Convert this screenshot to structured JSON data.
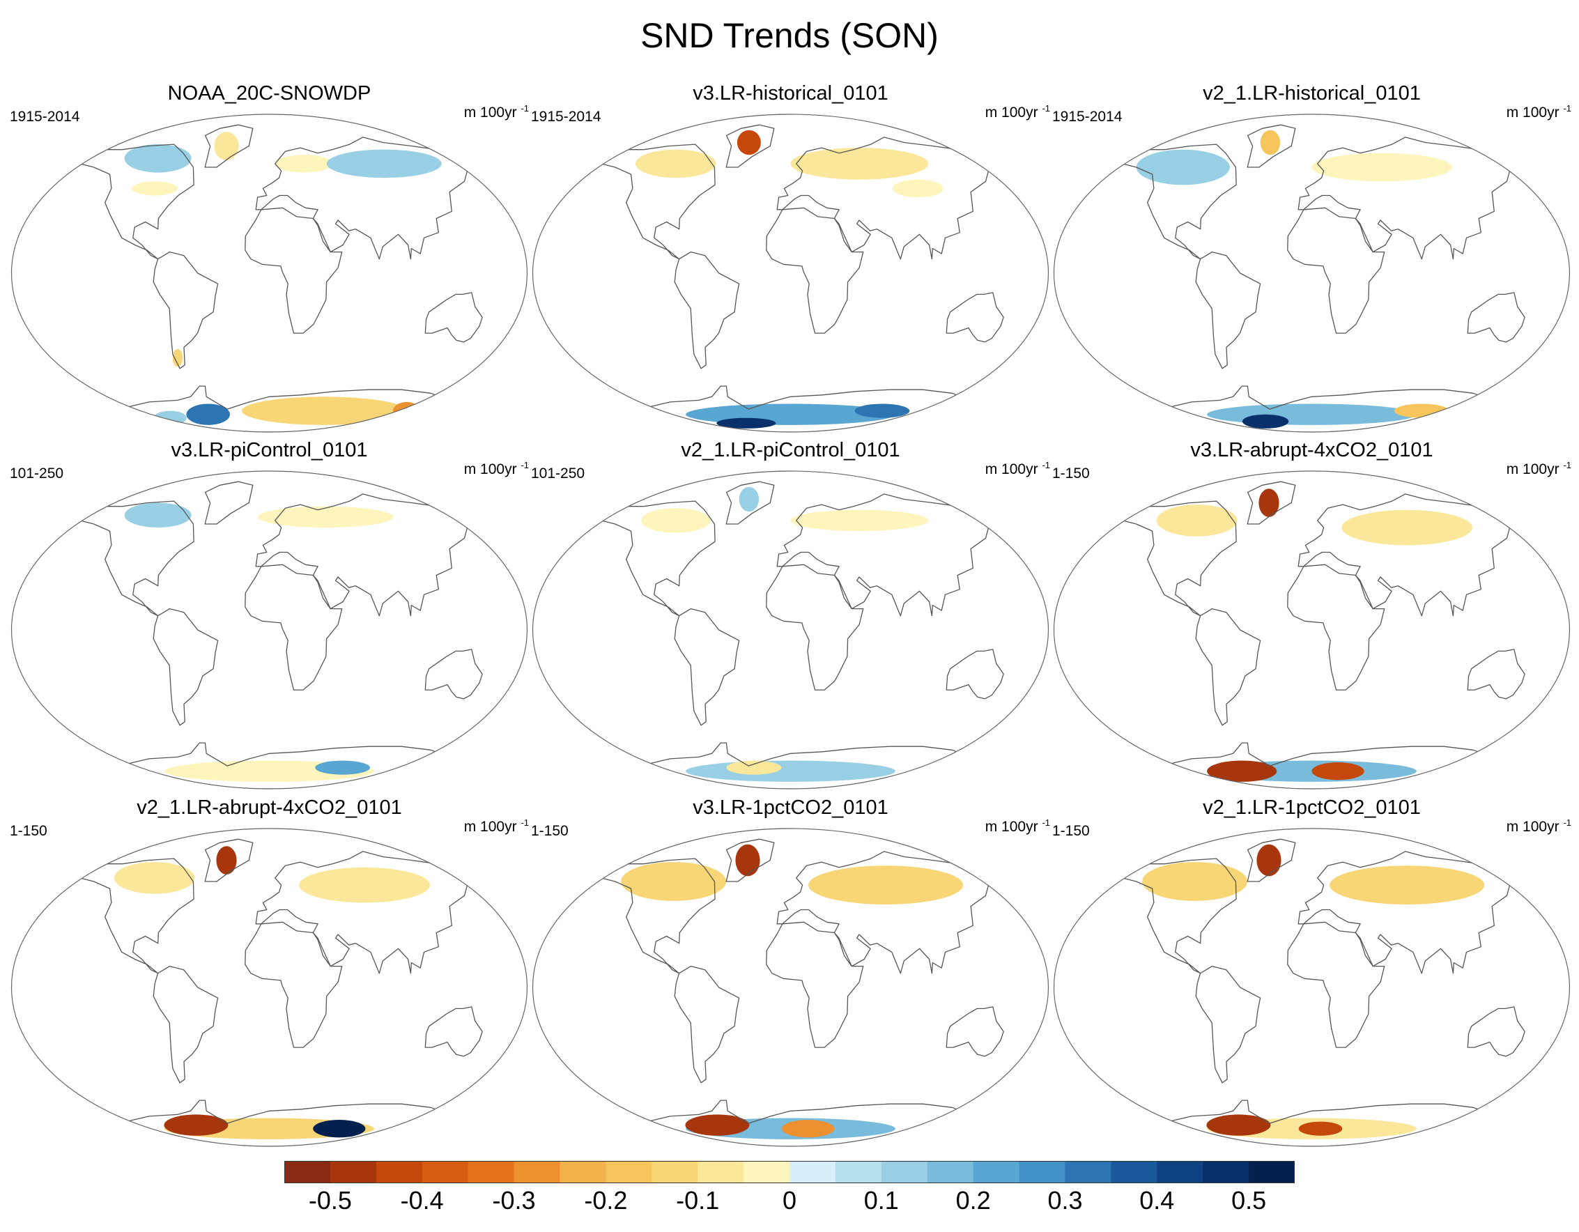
{
  "chart_data": {
    "type": "heatmap",
    "title": "SND Trends (SON)",
    "projection": "Robinson-like global map, 3x3 panel grid",
    "units_text": "m 100yr",
    "units_superscript": "-1",
    "panels": [
      {
        "title": "NOAA_20C-SNOWDP",
        "period": "1915-2014",
        "blobs": [
          {
            "lon": -100,
            "lat": 65,
            "rx": 30,
            "ry": 8,
            "v": 0.1
          },
          {
            "lon": -42,
            "lat": 72,
            "rx": 12,
            "ry": 8,
            "v": -0.1
          },
          {
            "lon": 30,
            "lat": 62,
            "rx": 25,
            "ry": 5,
            "v": -0.05
          },
          {
            "lon": 100,
            "lat": 62,
            "rx": 50,
            "ry": 8,
            "v": 0.1
          },
          {
            "lon": -90,
            "lat": 48,
            "rx": 18,
            "ry": 4,
            "v": -0.05
          },
          {
            "lon": -72,
            "lat": -48,
            "rx": 4,
            "ry": 5,
            "v": -0.15
          },
          {
            "lon": -70,
            "lat": -80,
            "rx": 25,
            "ry": 6,
            "v": 0.3
          },
          {
            "lon": 60,
            "lat": -78,
            "rx": 90,
            "ry": 8,
            "v": -0.15
          },
          {
            "lon": -120,
            "lat": -82,
            "rx": 20,
            "ry": 4,
            "v": 0.1
          },
          {
            "lon": 150,
            "lat": -78,
            "rx": 15,
            "ry": 5,
            "v": -0.3
          }
        ]
      },
      {
        "title": "v3.LR-historical_0101",
        "period": "1915-2014",
        "blobs": [
          {
            "lon": -42,
            "lat": 74,
            "rx": 12,
            "ry": 7,
            "v": -0.45
          },
          {
            "lon": -100,
            "lat": 62,
            "rx": 35,
            "ry": 8,
            "v": -0.1
          },
          {
            "lon": 60,
            "lat": 62,
            "rx": 60,
            "ry": 9,
            "v": -0.1
          },
          {
            "lon": 100,
            "lat": 48,
            "rx": 20,
            "ry": 5,
            "v": -0.05
          },
          {
            "lon": 0,
            "lat": -80,
            "rx": 120,
            "ry": 6,
            "v": 0.2
          },
          {
            "lon": -60,
            "lat": -85,
            "rx": 40,
            "ry": 3,
            "v": 0.45
          },
          {
            "lon": 100,
            "lat": -78,
            "rx": 30,
            "ry": 4,
            "v": 0.3
          }
        ]
      },
      {
        "title": "v2_1.LR-historical_0101",
        "period": "1915-2014",
        "blobs": [
          {
            "lon": -42,
            "lat": 74,
            "rx": 10,
            "ry": 7,
            "v": -0.2
          },
          {
            "lon": -110,
            "lat": 60,
            "rx": 40,
            "ry": 10,
            "v": 0.1
          },
          {
            "lon": 60,
            "lat": 60,
            "rx": 60,
            "ry": 8,
            "v": -0.05
          },
          {
            "lon": 0,
            "lat": -80,
            "rx": 120,
            "ry": 6,
            "v": 0.15
          },
          {
            "lon": -60,
            "lat": -84,
            "rx": 30,
            "ry": 4,
            "v": 0.45
          },
          {
            "lon": 120,
            "lat": -78,
            "rx": 30,
            "ry": 4,
            "v": -0.2
          }
        ]
      },
      {
        "title": "v3.LR-piControl_0101",
        "period": "101-250",
        "blobs": [
          {
            "lon": -100,
            "lat": 65,
            "rx": 30,
            "ry": 7,
            "v": 0.1
          },
          {
            "lon": 50,
            "lat": 64,
            "rx": 60,
            "ry": 6,
            "v": -0.05
          },
          {
            "lon": 0,
            "lat": -80,
            "rx": 120,
            "ry": 6,
            "v": -0.05
          },
          {
            "lon": 80,
            "lat": -78,
            "rx": 30,
            "ry": 4,
            "v": 0.2
          }
        ]
      },
      {
        "title": "v2_1.LR-piControl_0101",
        "period": "101-250",
        "blobs": [
          {
            "lon": -42,
            "lat": 74,
            "rx": 10,
            "ry": 7,
            "v": 0.1
          },
          {
            "lon": -100,
            "lat": 62,
            "rx": 30,
            "ry": 7,
            "v": -0.05
          },
          {
            "lon": 60,
            "lat": 62,
            "rx": 60,
            "ry": 6,
            "v": -0.05
          },
          {
            "lon": 0,
            "lat": -80,
            "rx": 120,
            "ry": 6,
            "v": 0.1
          },
          {
            "lon": -40,
            "lat": -78,
            "rx": 30,
            "ry": 4,
            "v": -0.1
          }
        ]
      },
      {
        "title": "v3.LR-abrupt-4xCO2_0101",
        "period": "1-150",
        "blobs": [
          {
            "lon": -42,
            "lat": 72,
            "rx": 10,
            "ry": 8,
            "v": -0.5
          },
          {
            "lon": -100,
            "lat": 62,
            "rx": 35,
            "ry": 9,
            "v": -0.1
          },
          {
            "lon": 80,
            "lat": 58,
            "rx": 55,
            "ry": 10,
            "v": -0.1
          },
          {
            "lon": 0,
            "lat": -80,
            "rx": 120,
            "ry": 6,
            "v": 0.15
          },
          {
            "lon": -80,
            "lat": -80,
            "rx": 40,
            "ry": 6,
            "v": -0.5
          },
          {
            "lon": 30,
            "lat": -80,
            "rx": 30,
            "ry": 5,
            "v": -0.45
          }
        ]
      },
      {
        "title": "v2_1.LR-abrupt-4xCO2_0101",
        "period": "1-150",
        "blobs": [
          {
            "lon": -42,
            "lat": 72,
            "rx": 10,
            "ry": 8,
            "v": -0.5
          },
          {
            "lon": -100,
            "lat": 62,
            "rx": 35,
            "ry": 9,
            "v": -0.1
          },
          {
            "lon": 80,
            "lat": 58,
            "rx": 55,
            "ry": 10,
            "v": -0.1
          },
          {
            "lon": 0,
            "lat": -80,
            "rx": 120,
            "ry": 6,
            "v": -0.15
          },
          {
            "lon": -80,
            "lat": -78,
            "rx": 35,
            "ry": 6,
            "v": -0.5
          },
          {
            "lon": 80,
            "lat": -80,
            "rx": 30,
            "ry": 5,
            "v": 0.5
          }
        ]
      },
      {
        "title": "v3.LR-1pctCO2_0101",
        "period": "1-150",
        "blobs": [
          {
            "lon": -42,
            "lat": 72,
            "rx": 12,
            "ry": 9,
            "v": -0.5
          },
          {
            "lon": -100,
            "lat": 60,
            "rx": 45,
            "ry": 11,
            "v": -0.15
          },
          {
            "lon": 80,
            "lat": 58,
            "rx": 65,
            "ry": 11,
            "v": -0.15
          },
          {
            "lon": 0,
            "lat": -80,
            "rx": 120,
            "ry": 6,
            "v": 0.15
          },
          {
            "lon": -80,
            "lat": -78,
            "rx": 35,
            "ry": 6,
            "v": -0.5
          },
          {
            "lon": 20,
            "lat": -80,
            "rx": 30,
            "ry": 5,
            "v": -0.3
          }
        ]
      },
      {
        "title": "v2_1.LR-1pctCO2_0101",
        "period": "1-150",
        "blobs": [
          {
            "lon": -42,
            "lat": 72,
            "rx": 12,
            "ry": 9,
            "v": -0.5
          },
          {
            "lon": -100,
            "lat": 60,
            "rx": 45,
            "ry": 11,
            "v": -0.15
          },
          {
            "lon": 80,
            "lat": 58,
            "rx": 65,
            "ry": 11,
            "v": -0.15
          },
          {
            "lon": 0,
            "lat": -80,
            "rx": 120,
            "ry": 6,
            "v": -0.1
          },
          {
            "lon": -80,
            "lat": -78,
            "rx": 35,
            "ry": 6,
            "v": -0.5
          },
          {
            "lon": 10,
            "lat": -80,
            "rx": 25,
            "ry": 4,
            "v": -0.45
          }
        ]
      }
    ],
    "colorbar": {
      "levels": [
        -0.55,
        -0.5,
        -0.45,
        -0.4,
        -0.35,
        -0.3,
        -0.25,
        -0.2,
        -0.15,
        -0.1,
        -0.05,
        0,
        0.05,
        0.1,
        0.15,
        0.2,
        0.25,
        0.3,
        0.35,
        0.4,
        0.45,
        0.5,
        0.55
      ],
      "colors": [
        "#8a2a12",
        "#a8360d",
        "#c6470a",
        "#d85c10",
        "#e4721c",
        "#ec9030",
        "#f2b24c",
        "#f6c65c",
        "#f8d676",
        "#fbe79a",
        "#fdf5bb",
        "#d6effa",
        "#b6e0ee",
        "#98cfe4",
        "#78bbdb",
        "#5aa6d2",
        "#4190c6",
        "#2c74b2",
        "#1a5a9c",
        "#0e4282",
        "#08306b",
        "#04204f"
      ],
      "tick_labels": [
        "-0.5",
        "-0.4",
        "-0.3",
        "-0.2",
        "-0.1",
        "0",
        "0.1",
        "0.2",
        "0.3",
        "0.4",
        "0.5"
      ]
    }
  }
}
